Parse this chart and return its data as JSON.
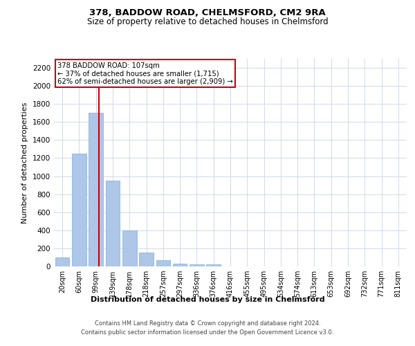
{
  "title1": "378, BADDOW ROAD, CHELMSFORD, CM2 9RA",
  "title2": "Size of property relative to detached houses in Chelmsford",
  "xlabel": "Distribution of detached houses by size in Chelmsford",
  "ylabel": "Number of detached properties",
  "categories": [
    "20sqm",
    "60sqm",
    "99sqm",
    "139sqm",
    "178sqm",
    "218sqm",
    "257sqm",
    "297sqm",
    "336sqm",
    "376sqm",
    "416sqm",
    "455sqm",
    "495sqm",
    "534sqm",
    "574sqm",
    "613sqm",
    "653sqm",
    "692sqm",
    "732sqm",
    "771sqm",
    "811sqm"
  ],
  "values": [
    100,
    1250,
    1700,
    950,
    400,
    150,
    70,
    30,
    25,
    20,
    0,
    0,
    0,
    0,
    0,
    0,
    0,
    0,
    0,
    0,
    0
  ],
  "bar_color": "#aec6e8",
  "bar_edge_color": "#7aaddb",
  "annotation_line1": "378 BADDOW ROAD: 107sqm",
  "annotation_line2": "← 37% of detached houses are smaller (1,715)",
  "annotation_line3": "62% of semi-detached houses are larger (2,909) →",
  "annotation_box_color": "#cc0000",
  "vline_x_index": 2.18,
  "vline_color": "#cc0000",
  "ylim": [
    0,
    2300
  ],
  "yticks": [
    0,
    200,
    400,
    600,
    800,
    1000,
    1200,
    1400,
    1600,
    1800,
    2000,
    2200
  ],
  "footer1": "Contains HM Land Registry data © Crown copyright and database right 2024.",
  "footer2": "Contains public sector information licensed under the Open Government Licence v3.0.",
  "bg_color": "#ffffff",
  "grid_color": "#d0d8e8"
}
